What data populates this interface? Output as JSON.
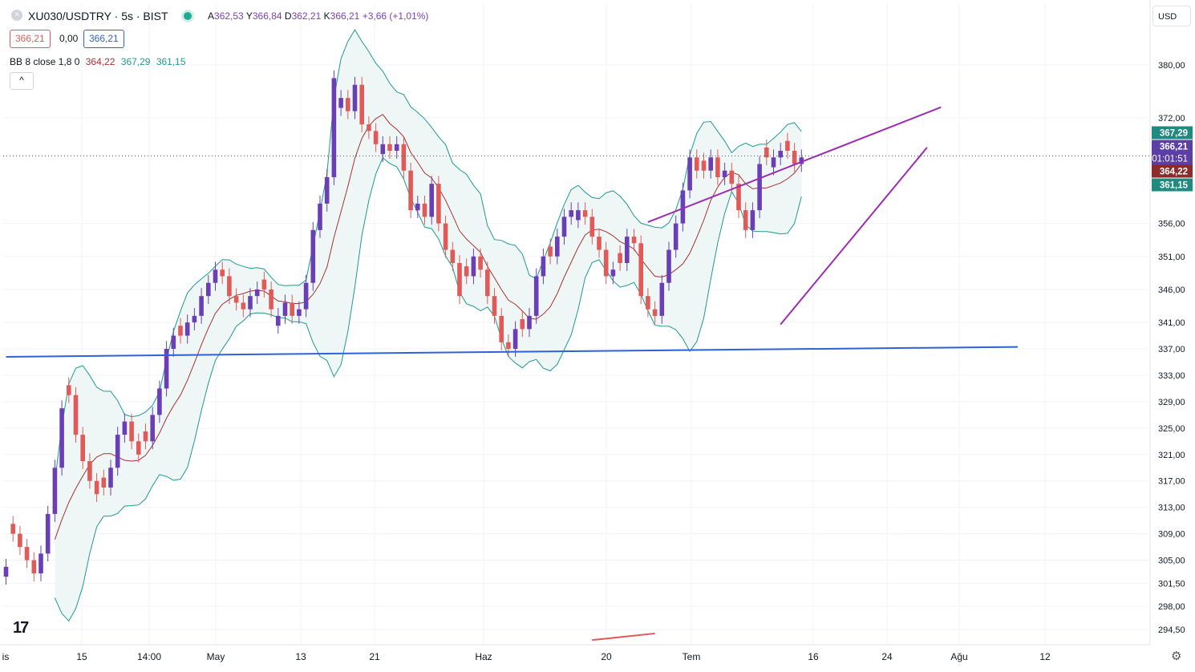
{
  "header": {
    "symbol": "XU030/USDTRY · 5s · BIST",
    "ohlc": {
      "open_label": "A",
      "open": "362,53",
      "high_label": "Y",
      "high": "366,84",
      "low_label": "D",
      "low": "362,21",
      "close_label": "K",
      "close": "366,21",
      "change": "+3,66 (+1,01%)"
    },
    "bid": "366,21",
    "spread": "0,00",
    "ask": "366,21",
    "indicator": {
      "name": "BB 8 close 1,8 0",
      "basis": "364,22",
      "upper": "367,29",
      "lower": "361,15"
    },
    "collapse_icon": "^"
  },
  "currency": "USD",
  "logo": "17",
  "colors": {
    "up": "#6a3fb5",
    "down": "#e05a5a",
    "band": "#1f9a8f",
    "band_fill": "#eef7f6",
    "basis": "#a83232",
    "trend_blue": "#2f62d6",
    "trend_purple": "#9b2cb3",
    "last_price": "#5b3fa6"
  },
  "chart_data": {
    "type": "candlestick",
    "yaxis": {
      "ticks": [
        "380,00",
        "372,00",
        "356,00",
        "351,00",
        "346,00",
        "341,00",
        "337,00",
        "333,00",
        "329,00",
        "325,00",
        "321,00",
        "317,00",
        "313,00",
        "309,00",
        "305,00",
        "301,50",
        "298,00",
        "294,50"
      ],
      "range": [
        293,
        383
      ]
    },
    "xaxis": {
      "ticks": [
        "is",
        "15",
        "14:00",
        "May",
        "13",
        "21",
        "Haz",
        "20",
        "Tem",
        "16",
        "24",
        "Ağu",
        "12"
      ]
    },
    "price_labels": [
      {
        "text": "367,29",
        "value": 367.29,
        "kind": "upper"
      },
      {
        "text": "366,21",
        "value": 366.21,
        "kind": "last"
      },
      {
        "text": "01:01:51",
        "value": 366.21,
        "kind": "countdown"
      },
      {
        "text": "364,22",
        "value": 364.22,
        "kind": "basis"
      },
      {
        "text": "361,15",
        "value": 361.15,
        "kind": "lower"
      }
    ],
    "candles": [
      [
        0,
        "up",
        304
      ],
      [
        1,
        "down",
        309
      ],
      [
        2,
        "down",
        307
      ],
      [
        3,
        "down",
        305
      ],
      [
        4,
        "down",
        303
      ],
      [
        5,
        "up",
        306
      ],
      [
        6,
        "up",
        312
      ],
      [
        7,
        "up",
        319
      ],
      [
        8,
        "up",
        328
      ],
      [
        9,
        "down",
        330
      ],
      [
        10,
        "down",
        324
      ],
      [
        11,
        "down",
        320
      ],
      [
        12,
        "down",
        317
      ],
      [
        13,
        "down",
        315
      ],
      [
        14,
        "down",
        316
      ],
      [
        15,
        "up",
        319
      ],
      [
        16,
        "up",
        324
      ],
      [
        17,
        "up",
        326
      ],
      [
        18,
        "down",
        323
      ],
      [
        19,
        "down",
        321
      ],
      [
        20,
        "down",
        323
      ],
      [
        21,
        "up",
        327
      ],
      [
        22,
        "up",
        331
      ],
      [
        23,
        "up",
        337
      ],
      [
        24,
        "up",
        339
      ],
      [
        25,
        "down",
        339
      ],
      [
        26,
        "up",
        341
      ],
      [
        27,
        "up",
        342
      ],
      [
        28,
        "up",
        345
      ],
      [
        29,
        "up",
        347
      ],
      [
        30,
        "up",
        349
      ],
      [
        31,
        "down",
        348
      ],
      [
        32,
        "down",
        345
      ],
      [
        33,
        "down",
        344
      ],
      [
        34,
        "down",
        343
      ],
      [
        35,
        "up",
        345
      ],
      [
        36,
        "up",
        346
      ],
      [
        37,
        "down",
        346
      ],
      [
        38,
        "down",
        343
      ],
      [
        39,
        "up",
        342
      ],
      [
        40,
        "up",
        344
      ],
      [
        41,
        "down",
        342
      ],
      [
        42,
        "up",
        343
      ],
      [
        43,
        "up",
        347
      ],
      [
        44,
        "up",
        355
      ],
      [
        45,
        "up",
        359
      ],
      [
        46,
        "up",
        363
      ],
      [
        47,
        "up",
        378
      ],
      [
        48,
        "up",
        375
      ],
      [
        49,
        "down",
        373
      ],
      [
        50,
        "up",
        377
      ],
      [
        51,
        "down",
        371
      ],
      [
        52,
        "down",
        370
      ],
      [
        53,
        "down",
        368
      ],
      [
        54,
        "up",
        368
      ],
      [
        55,
        "down",
        367
      ],
      [
        56,
        "up",
        368
      ],
      [
        57,
        "down",
        364
      ],
      [
        58,
        "down",
        358
      ],
      [
        59,
        "up",
        359
      ],
      [
        60,
        "down",
        357
      ],
      [
        61,
        "up",
        362
      ],
      [
        62,
        "down",
        356
      ],
      [
        63,
        "down",
        352
      ],
      [
        64,
        "down",
        350
      ],
      [
        65,
        "down",
        345
      ],
      [
        66,
        "down",
        348
      ],
      [
        67,
        "up",
        351
      ],
      [
        68,
        "down",
        349
      ],
      [
        69,
        "down",
        345
      ],
      [
        70,
        "down",
        342
      ],
      [
        71,
        "down",
        338
      ],
      [
        72,
        "down",
        337
      ],
      [
        73,
        "up",
        340
      ],
      [
        74,
        "down",
        340
      ],
      [
        75,
        "up",
        342
      ],
      [
        76,
        "up",
        348
      ],
      [
        77,
        "up",
        351
      ],
      [
        78,
        "down",
        351
      ],
      [
        79,
        "up",
        354
      ],
      [
        80,
        "up",
        357
      ],
      [
        81,
        "up",
        358
      ],
      [
        82,
        "up",
        358
      ],
      [
        83,
        "down",
        357
      ],
      [
        84,
        "down",
        354
      ],
      [
        85,
        "down",
        352
      ],
      [
        86,
        "down",
        348
      ],
      [
        87,
        "up",
        349
      ],
      [
        88,
        "down",
        350
      ],
      [
        89,
        "up",
        354
      ],
      [
        90,
        "down",
        353
      ],
      [
        91,
        "down",
        345
      ],
      [
        92,
        "down",
        343
      ],
      [
        93,
        "down",
        342
      ],
      [
        94,
        "up",
        347
      ],
      [
        95,
        "up",
        352
      ],
      [
        96,
        "up",
        356
      ],
      [
        97,
        "up",
        361
      ],
      [
        98,
        "up",
        366
      ],
      [
        99,
        "down",
        364
      ],
      [
        100,
        "down",
        364
      ],
      [
        101,
        "up",
        366
      ],
      [
        102,
        "down",
        363
      ],
      [
        103,
        "up",
        364
      ],
      [
        104,
        "down",
        362
      ],
      [
        105,
        "down",
        358
      ],
      [
        106,
        "down",
        355
      ],
      [
        107,
        "up",
        358
      ],
      [
        108,
        "up",
        365
      ],
      [
        109,
        "down",
        366
      ],
      [
        110,
        "up",
        366
      ],
      [
        111,
        "up",
        367
      ],
      [
        112,
        "down",
        367
      ],
      [
        113,
        "down",
        365
      ],
      [
        114,
        "up",
        366
      ]
    ],
    "bollinger": {
      "period": 8,
      "source": "close",
      "mult": 1.8,
      "offset": 0
    },
    "trendlines": [
      {
        "name": "support",
        "color": "blue",
        "points": [
          [
            0,
            335.8
          ],
          [
            145,
            337.3
          ]
        ]
      },
      {
        "name": "channel_upper",
        "color": "purple",
        "points": [
          [
            92,
            356.2
          ],
          [
            134,
            373.6
          ]
        ]
      },
      {
        "name": "channel_lower",
        "color": "purple",
        "points": [
          [
            111,
            340.7
          ],
          [
            132,
            367.5
          ]
        ]
      },
      {
        "name": "red_segment",
        "color": "red",
        "points": [
          [
            84,
            292.9
          ],
          [
            93,
            293.9
          ]
        ]
      }
    ]
  }
}
